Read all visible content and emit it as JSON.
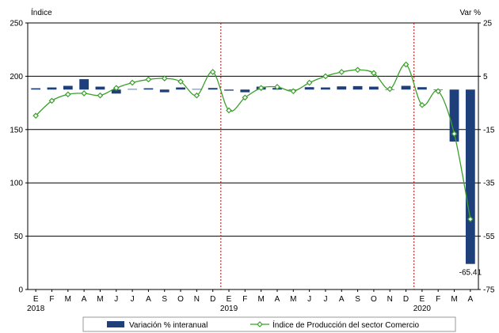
{
  "chart_data": {
    "type": "bar+line",
    "y_left_label": "Índice",
    "y_right_label": "Var %",
    "y_left_ticks": [
      "0",
      "50",
      "100",
      "150",
      "200",
      "250"
    ],
    "y_right_ticks": [
      "-75",
      "-55",
      "-35",
      "-15",
      "5",
      "25"
    ],
    "ylim_left": [
      0,
      250
    ],
    "ylim_right": [
      -75,
      25
    ],
    "months": [
      "E",
      "F",
      "M",
      "A",
      "M",
      "J",
      "J",
      "A",
      "S",
      "O",
      "N",
      "D",
      "E",
      "F",
      "M",
      "A",
      "M",
      "J",
      "J",
      "A",
      "S",
      "O",
      "N",
      "D",
      "E",
      "F",
      "M",
      "A"
    ],
    "years": [
      {
        "label": "2018",
        "index": 0
      },
      {
        "label": "2019",
        "index": 12
      },
      {
        "label": "2020",
        "index": 24
      }
    ],
    "year_separators": [
      11.5,
      23.5
    ],
    "series": [
      {
        "name": "Variación % interanual",
        "kind": "bar",
        "axis": "right",
        "color": "#1f3f7a",
        "values": [
          0.5,
          0.8,
          1.4,
          3.9,
          1.1,
          -1.5,
          0.2,
          0.5,
          -1.0,
          0.8,
          0.2,
          0.6,
          -0.4,
          -1.0,
          1.1,
          0.6,
          -0.2,
          0.9,
          0.8,
          1.2,
          1.3,
          1.1,
          0.1,
          1.4,
          0.9,
          0.0,
          -19.5,
          -65.41
        ]
      },
      {
        "name": "Índice de Producción del sector Comercio",
        "kind": "line",
        "axis": "left",
        "color": "#3aa02a",
        "values": [
          163,
          177,
          183,
          184,
          182,
          189,
          194,
          197,
          198,
          195,
          182,
          204,
          168,
          180,
          189,
          190,
          186,
          194,
          200,
          204,
          206,
          203,
          188,
          211,
          173,
          186,
          146,
          66
        ]
      }
    ],
    "annotations": [
      {
        "text": "-65.41",
        "index": 27,
        "axis": "right",
        "value": -65.41
      }
    ],
    "legend_position": "bottom"
  }
}
